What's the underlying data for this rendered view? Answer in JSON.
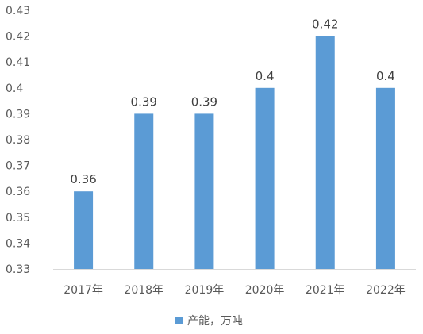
{
  "chart_data": {
    "type": "bar",
    "categories": [
      "2017年",
      "2018年",
      "2019年",
      "2020年",
      "2021年",
      "2022年"
    ],
    "series": [
      {
        "name": "产能，万吨",
        "values": [
          0.36,
          0.39,
          0.39,
          0.4,
          0.42,
          0.4
        ],
        "data_labels": [
          "0.36",
          "0.39",
          "0.39",
          "0.4",
          "0.42",
          "0.4"
        ],
        "color": "#5B9BD5"
      }
    ],
    "title": "",
    "xlabel": "",
    "ylabel": "",
    "ylim": [
      0.33,
      0.43
    ],
    "yticks": [
      "0.33",
      "0.34",
      "0.35",
      "0.36",
      "0.37",
      "0.38",
      "0.39",
      "0.4",
      "0.41",
      "0.42",
      "0.43"
    ],
    "grid": false,
    "legend": {
      "position": "bottom"
    },
    "axis_color": "#D9D9D9",
    "text_color": "#595959",
    "label_color": "#404040"
  }
}
